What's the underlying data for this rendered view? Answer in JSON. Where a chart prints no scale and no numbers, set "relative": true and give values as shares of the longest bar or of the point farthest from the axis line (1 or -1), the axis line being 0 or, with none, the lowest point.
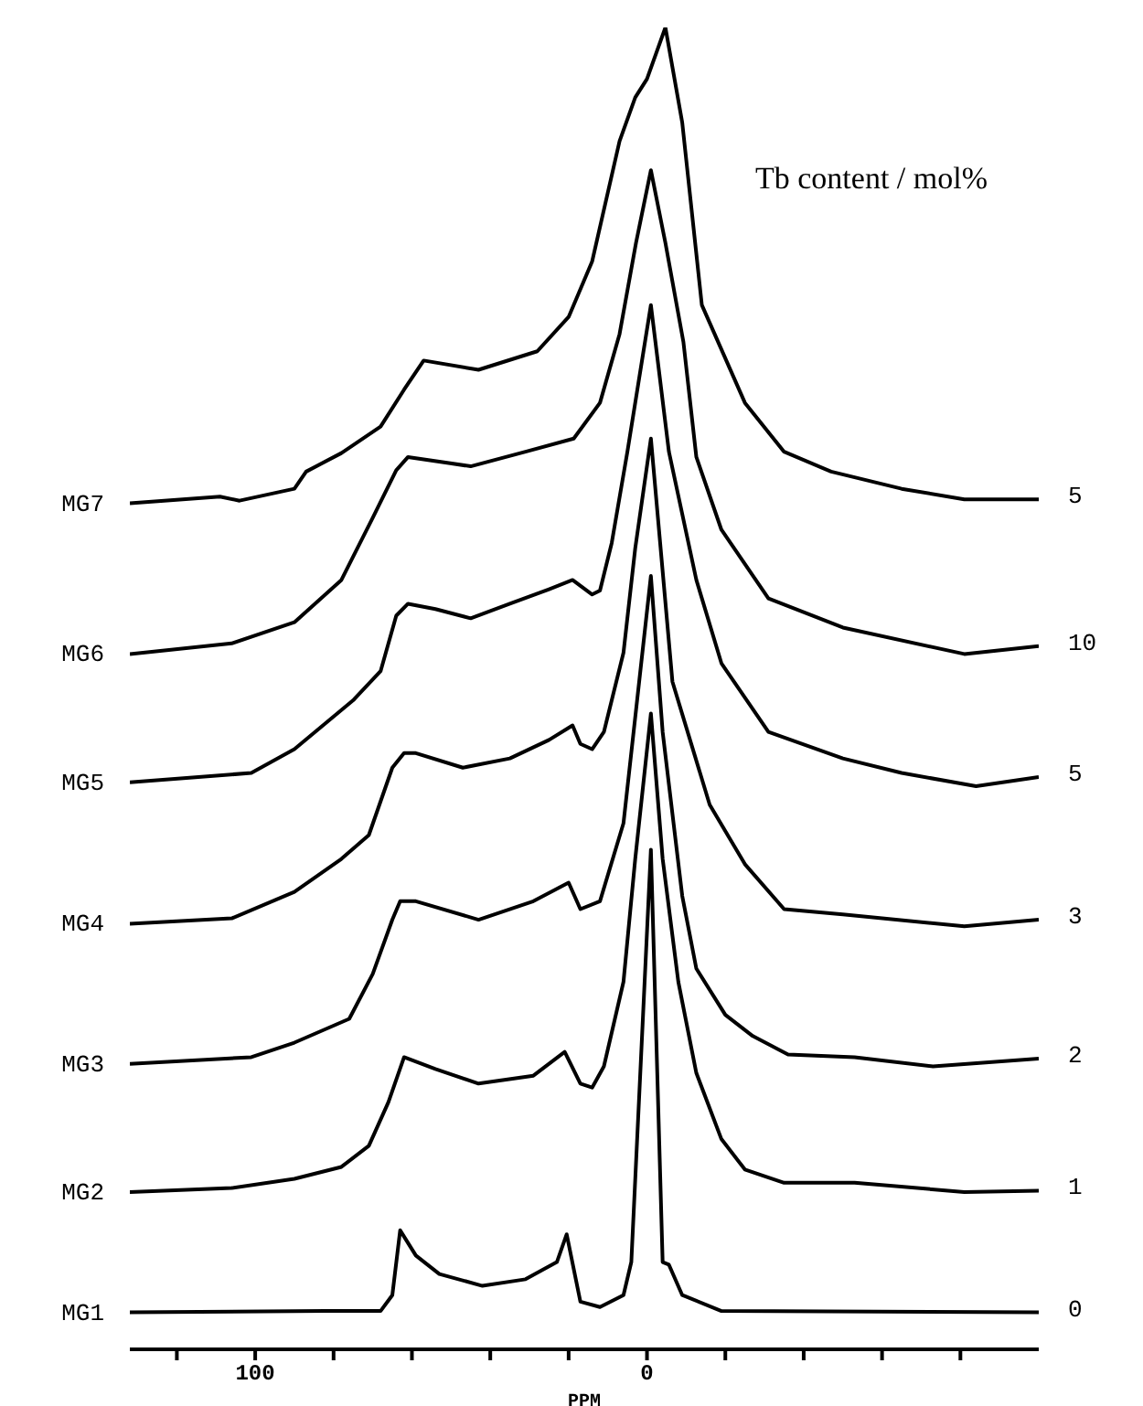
{
  "chart_data": {
    "type": "line",
    "relative": true,
    "xlabel": "PPM",
    "xlim": [
      132,
      -100
    ],
    "xticks": [
      {
        "value": 120,
        "label": null
      },
      100,
      {
        "value": 80,
        "label": null
      },
      {
        "value": 60,
        "label": null
      },
      {
        "value": 40,
        "label": null
      },
      {
        "value": 20,
        "label": null
      },
      0,
      {
        "value": -20,
        "label": null
      },
      {
        "value": -40,
        "label": null
      },
      {
        "value": -60,
        "label": null
      },
      {
        "value": -80,
        "label": null
      }
    ],
    "legend": false,
    "grid": false,
    "marker": "none",
    "line_style": "solid",
    "series": [
      {
        "name": "MG1",
        "color": "#000000",
        "x": [
          132,
          82,
          68,
          65,
          63,
          59,
          53,
          42,
          31,
          23,
          20.5,
          17,
          12,
          6,
          4,
          -1,
          -4,
          -5.6,
          -9,
          -19,
          -100
        ],
        "values": [
          0.028,
          0.029,
          0.029,
          0.041,
          0.09,
          0.071,
          0.057,
          0.048,
          0.053,
          0.066,
          0.087,
          0.036,
          0.032,
          0.041,
          0.066,
          0.378,
          0.066,
          0.064,
          0.041,
          0.029,
          0.028
        ]
      },
      {
        "name": "MG2",
        "color": "#000000",
        "x": [
          132,
          106,
          90,
          78,
          71,
          66,
          62,
          54,
          43,
          29,
          21,
          17,
          14,
          11,
          6,
          3,
          -1,
          -4,
          -8,
          -12.6,
          -19,
          -25,
          -35,
          -53,
          -81,
          -100
        ],
        "values": [
          0.119,
          0.122,
          0.129,
          0.138,
          0.154,
          0.187,
          0.221,
          0.212,
          0.201,
          0.207,
          0.225,
          0.201,
          0.198,
          0.214,
          0.278,
          0.371,
          0.481,
          0.371,
          0.278,
          0.209,
          0.159,
          0.136,
          0.126,
          0.126,
          0.119,
          0.12
        ]
      },
      {
        "name": "MG3",
        "color": "#000000",
        "x": [
          132,
          101,
          90,
          76,
          70,
          65,
          63,
          59,
          43,
          29,
          20,
          17,
          12,
          6,
          -1,
          -4,
          -9,
          -12.6,
          -20,
          -27,
          -36,
          -53,
          -73,
          -100
        ],
        "values": [
          0.216,
          0.221,
          0.232,
          0.25,
          0.284,
          0.325,
          0.339,
          0.339,
          0.325,
          0.339,
          0.353,
          0.333,
          0.339,
          0.398,
          0.585,
          0.467,
          0.343,
          0.288,
          0.253,
          0.237,
          0.223,
          0.221,
          0.214,
          0.22
        ]
      },
      {
        "name": "MG4",
        "color": "#000000",
        "x": [
          132,
          106,
          90,
          78,
          71,
          65,
          62,
          59,
          47,
          35,
          25,
          19,
          17,
          14,
          11,
          6,
          3,
          -1,
          -6.5,
          -16,
          -25,
          -35,
          -50,
          -81,
          -100
        ],
        "values": [
          0.322,
          0.326,
          0.346,
          0.371,
          0.389,
          0.44,
          0.451,
          0.451,
          0.44,
          0.447,
          0.461,
          0.472,
          0.458,
          0.454,
          0.467,
          0.527,
          0.606,
          0.689,
          0.505,
          0.412,
          0.367,
          0.333,
          0.329,
          0.32,
          0.325
        ]
      },
      {
        "name": "MG5",
        "color": "#000000",
        "x": [
          132,
          101,
          90,
          75,
          68,
          64,
          61,
          54,
          45,
          35,
          25,
          19,
          14,
          12,
          9,
          5,
          -1,
          -5.6,
          -12.6,
          -19,
          -31,
          -50,
          -65,
          -84,
          -100
        ],
        "values": [
          0.429,
          0.436,
          0.454,
          0.491,
          0.513,
          0.555,
          0.564,
          0.56,
          0.553,
          0.564,
          0.575,
          0.582,
          0.571,
          0.574,
          0.61,
          0.679,
          0.79,
          0.679,
          0.582,
          0.519,
          0.467,
          0.447,
          0.436,
          0.426,
          0.433
        ]
      },
      {
        "name": "MG6",
        "color": "#000000",
        "x": [
          132,
          106,
          90,
          78,
          70,
          64,
          61,
          45,
          31,
          18.7,
          12,
          7,
          2.8,
          -1,
          -4.7,
          -9.3,
          -12.6,
          -19,
          -31,
          -50,
          -81,
          -100
        ],
        "values": [
          0.526,
          0.534,
          0.55,
          0.582,
          0.629,
          0.665,
          0.675,
          0.668,
          0.679,
          0.689,
          0.716,
          0.768,
          0.837,
          0.892,
          0.837,
          0.762,
          0.675,
          0.62,
          0.568,
          0.546,
          0.526,
          0.532
        ]
      },
      {
        "name": "MG7",
        "color": "#000000",
        "x": [
          132,
          109,
          104,
          90,
          87,
          78,
          68,
          62,
          57,
          43,
          28,
          20,
          14,
          7,
          3,
          0,
          -4.7,
          -9,
          -14,
          -25,
          -35,
          -47,
          -65,
          -81,
          -100
        ],
        "values": [
          0.64,
          0.645,
          0.642,
          0.651,
          0.664,
          0.678,
          0.698,
          0.726,
          0.748,
          0.741,
          0.755,
          0.781,
          0.823,
          0.914,
          0.947,
          0.961,
          1,
          0.928,
          0.79,
          0.716,
          0.679,
          0.664,
          0.651,
          0.643,
          0.643
        ]
      }
    ],
    "annotations": [
      "Tb content / mol%",
      "5",
      "10",
      "5",
      "3",
      "2",
      "1",
      "0"
    ]
  }
}
